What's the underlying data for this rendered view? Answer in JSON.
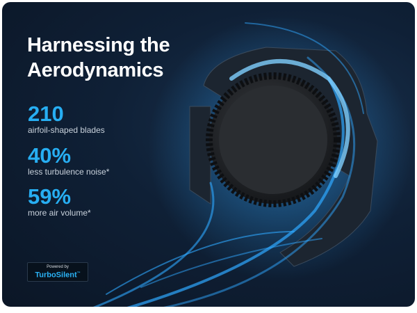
{
  "title_line1": "Harnessing the",
  "title_line2": "Aerodynamics",
  "stats": [
    {
      "value": "210",
      "label": "airfoil-shaped blades"
    },
    {
      "value": "40%",
      "label": "less turbulence noise*"
    },
    {
      "value": "59%",
      "label": "more air volume*"
    }
  ],
  "badge": {
    "powered_by": "Powered by",
    "brand": "TurboSilent",
    "tm": "™"
  },
  "colors": {
    "accent": "#27aef2",
    "background": "#0f2036"
  }
}
